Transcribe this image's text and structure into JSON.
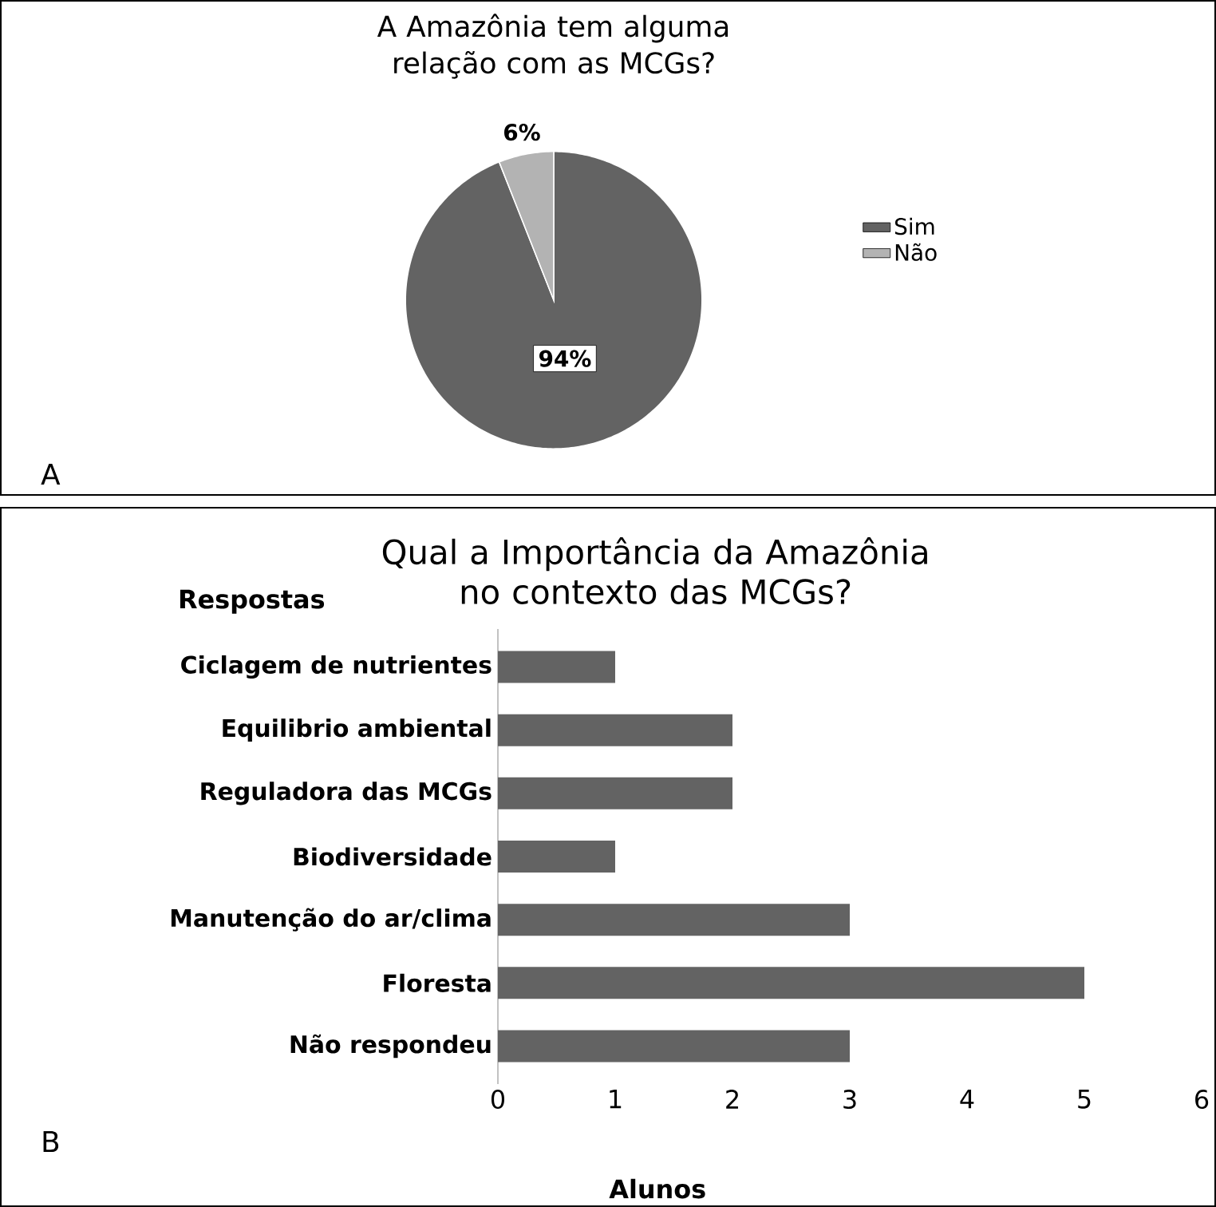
{
  "chart_data": [
    {
      "type": "pie",
      "title": "A Amazônia tem alguma relação com as MCGs?",
      "categories": [
        "Sim",
        "Não"
      ],
      "values": [
        94,
        6
      ],
      "colors": [
        "#636363",
        "#b3b3b3"
      ],
      "value_labels": [
        "94%",
        "6%"
      ],
      "legend": "right",
      "annotations": [
        "A"
      ]
    },
    {
      "type": "bar",
      "orientation": "horizontal",
      "title": "Qual a Importância da Amazônia no contexto das MCGs?",
      "ylabel": "Respostas",
      "xlabel": "Alunos",
      "categories": [
        "Ciclagem de nutrientes",
        "Equilibrio ambiental",
        "Reguladora das MCGs",
        "Biodiversidade",
        "Manutenção do ar/clima",
        "Floresta",
        "Não respondeu"
      ],
      "values": [
        1,
        2,
        2,
        1,
        3,
        5,
        3
      ],
      "color": "#636363",
      "xlim": [
        0,
        6
      ],
      "xticks": [
        0,
        1,
        2,
        3,
        4,
        5,
        6
      ],
      "annotations": [
        "B"
      ]
    }
  ]
}
